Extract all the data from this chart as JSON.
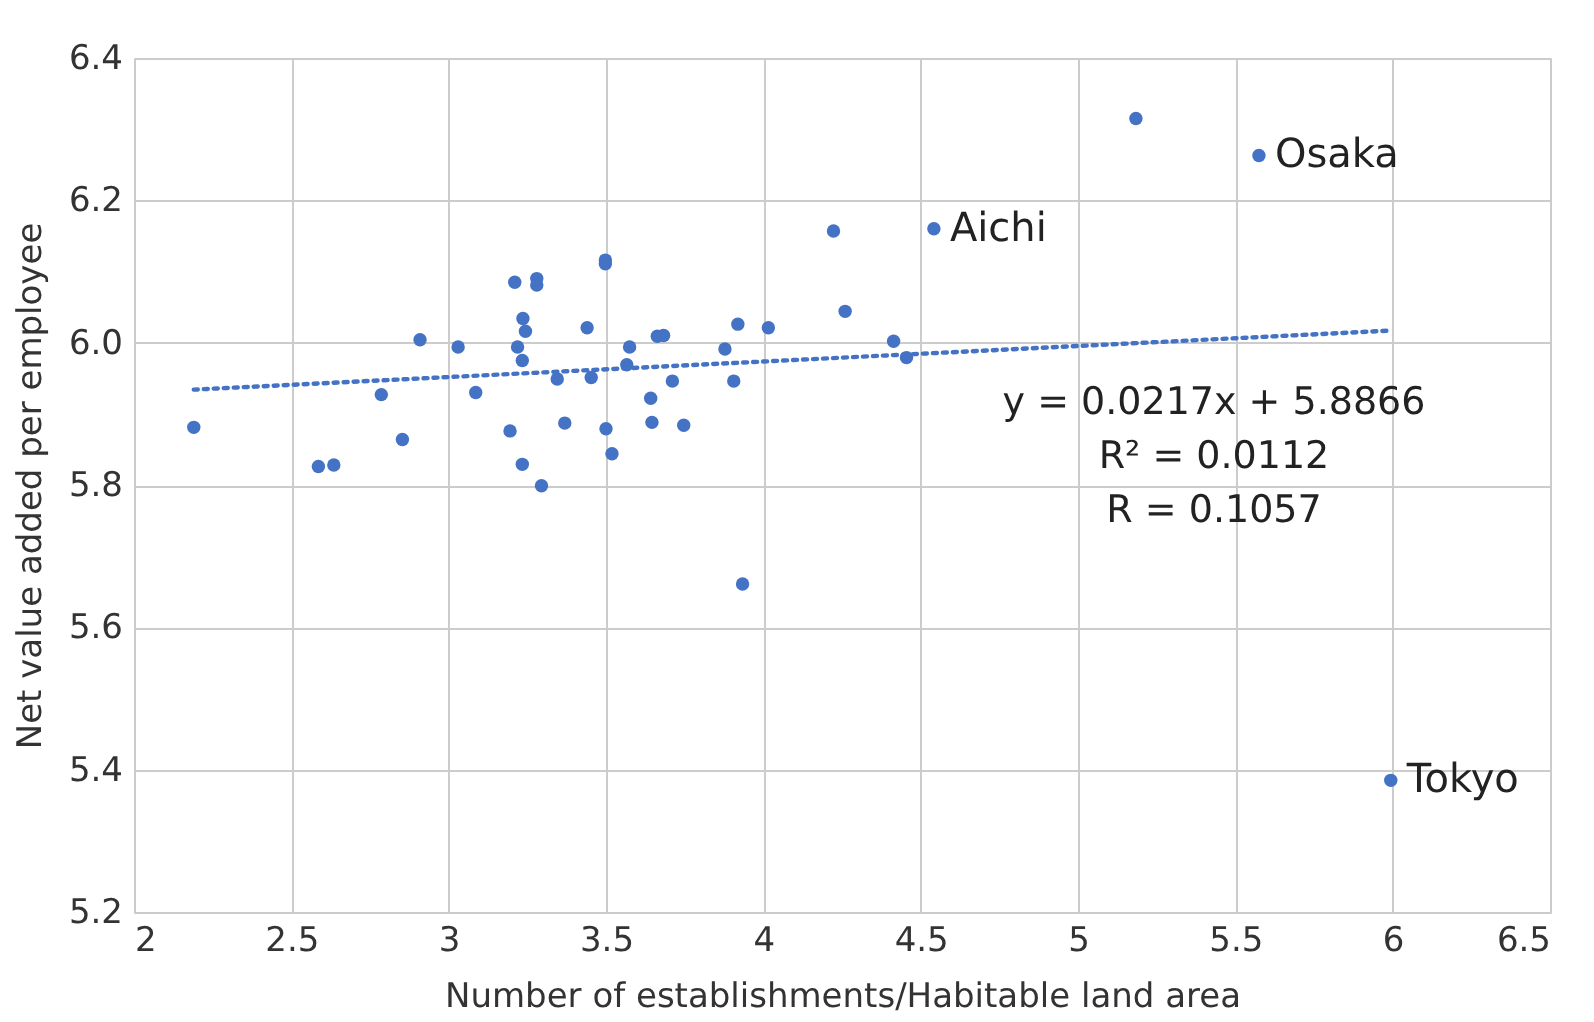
{
  "chart_data": {
    "type": "scatter",
    "xlabel": "Number of establishments/Habitable land area",
    "ylabel": "Net value added per employee",
    "xlim": [
      2,
      6.5
    ],
    "xticks": [
      2,
      2.5,
      3,
      3.5,
      4,
      4.5,
      5,
      5.5,
      6,
      6.5
    ],
    "ylim": [
      5.2,
      6.4
    ],
    "yticks": [
      5.2,
      5.4,
      5.6,
      5.8,
      {
        "value": 6,
        "label": "6.0"
      },
      6.2,
      6.4
    ],
    "grid": true,
    "marker": "circle",
    "series": [
      {
        "color": "#4472c4",
        "x": [
          2.19,
          2.586,
          2.635,
          2.786,
          2.853,
          2.909,
          3.03,
          3.086,
          3.195,
          3.21,
          3.219,
          3.234,
          3.236,
          3.244,
          3.234,
          3.28,
          3.28,
          3.295,
          3.345,
          3.369,
          3.44,
          3.453,
          3.498,
          3.498,
          3.5,
          3.519,
          3.575,
          3.566,
          3.642,
          3.646,
          3.663,
          3.683,
          3.711,
          3.747,
          3.878,
          3.906,
          3.919,
          3.934,
          4.016,
          4.223,
          4.26,
          4.414,
          4.455,
          4.542,
          5.184,
          5.575,
          5.994
        ],
        "values": [
          5.881,
          5.826,
          5.828,
          5.927,
          5.864,
          6.004,
          5.994,
          5.93,
          5.876,
          6.085,
          5.994,
          5.975,
          6.034,
          6.016,
          5.829,
          6.09,
          6.081,
          5.799,
          5.949,
          5.887,
          6.021,
          5.951,
          6.116,
          6.111,
          5.879,
          5.844,
          5.994,
          5.969,
          5.922,
          5.888,
          6.009,
          6.01,
          5.946,
          5.884,
          5.991,
          5.946,
          6.026,
          5.661,
          6.021,
          6.157,
          6.044,
          6.002,
          5.979,
          6.16,
          6.315,
          6.263,
          5.385
        ]
      },
      {
        "type": "line",
        "color": "#4472c4",
        "line_style": "dotted",
        "marker": "none",
        "x": [
          2.19,
          5.994
        ],
        "values": [
          5.934,
          6.017
        ]
      }
    ],
    "annotations": [
      {
        "text": "Aichi",
        "x": 4.542,
        "y": 6.16
      },
      {
        "text": "Osaka",
        "x": 5.575,
        "y": 6.263
      },
      {
        "text": "Tokyo",
        "x": 5.994,
        "y": 5.385
      },
      "y = 0.0217x + 5.8866",
      "R² = 0.0112",
      "R = 0.1057"
    ]
  }
}
